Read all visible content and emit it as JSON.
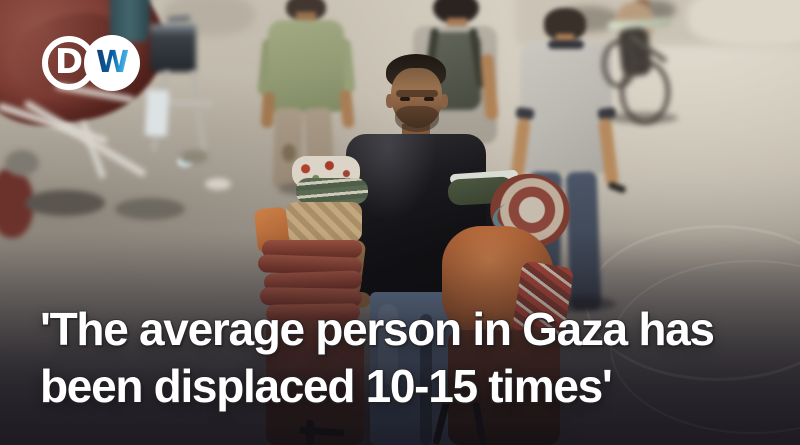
{
  "branding": {
    "name": "DW",
    "logo": {
      "d_letter": "D",
      "w_letter": "W"
    },
    "colors": {
      "logo_white": "#ffffff",
      "logo_w_blue_dark": "#0d4e86",
      "logo_w_blue_light": "#3aa9e0",
      "logo_backdrop_red": "#7e3d34"
    }
  },
  "headline": {
    "line1": "'The average person in Gaza has",
    "line2": "been displaced 10-15 times'",
    "color": "#ffffff"
  },
  "scene": {
    "alt": "A man in a black T-shirt pulls a handcart stacked with rolled maroon and orange blankets along a dusty street; blurred figures walk away in the background, a cyclist stands near rubble, and a dark red tarpaulin fills the top-left corner behind the DW logo."
  }
}
